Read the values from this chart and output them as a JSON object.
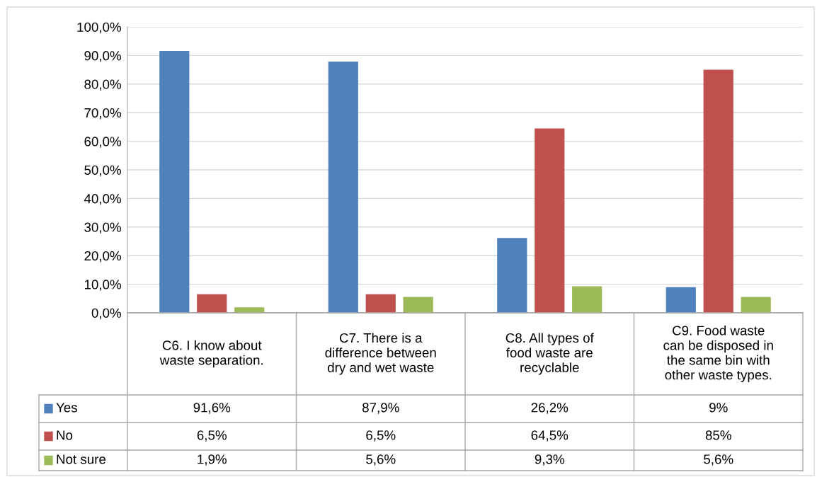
{
  "chart_data": {
    "type": "bar",
    "categories": [
      "C6. I know about\nwaste separation.",
      "C7. There is a\ndifference between\ndry and wet waste",
      "C8. All types of\nfood waste are\nrecyclable",
      "C9. Food waste\ncan be disposed in\nthe same bin with\nother waste types."
    ],
    "series": [
      {
        "name": "Yes",
        "color": "#4f81bd",
        "values": [
          91.6,
          87.9,
          26.2,
          9
        ],
        "value_labels": [
          "91,6%",
          "87,9%",
          "26,2%",
          "9%"
        ]
      },
      {
        "name": "No",
        "color": "#c0504d",
        "values": [
          6.5,
          6.5,
          64.5,
          85
        ],
        "value_labels": [
          "6,5%",
          "6,5%",
          "64,5%",
          "85%"
        ]
      },
      {
        "name": "Not sure",
        "color": "#9bbb59",
        "values": [
          1.9,
          5.6,
          9.3,
          5.6
        ],
        "value_labels": [
          "1,9%",
          "5,6%",
          "9,3%",
          "5,6%"
        ]
      }
    ],
    "ylim": [
      0,
      100
    ],
    "yticks": [
      {
        "value": 0,
        "label": "0,0%"
      },
      {
        "value": 10,
        "label": "10,0%"
      },
      {
        "value": 20,
        "label": "20,0%"
      },
      {
        "value": 30,
        "label": "30,0%"
      },
      {
        "value": 40,
        "label": "40,0%"
      },
      {
        "value": 50,
        "label": "50,0%"
      },
      {
        "value": 60,
        "label": "60,0%"
      },
      {
        "value": 70,
        "label": "70,0%"
      },
      {
        "value": 80,
        "label": "80,0%"
      },
      {
        "value": 90,
        "label": "90,0%"
      },
      {
        "value": 100,
        "label": "100,0%"
      }
    ],
    "grid": "y",
    "legend": "bottom"
  }
}
